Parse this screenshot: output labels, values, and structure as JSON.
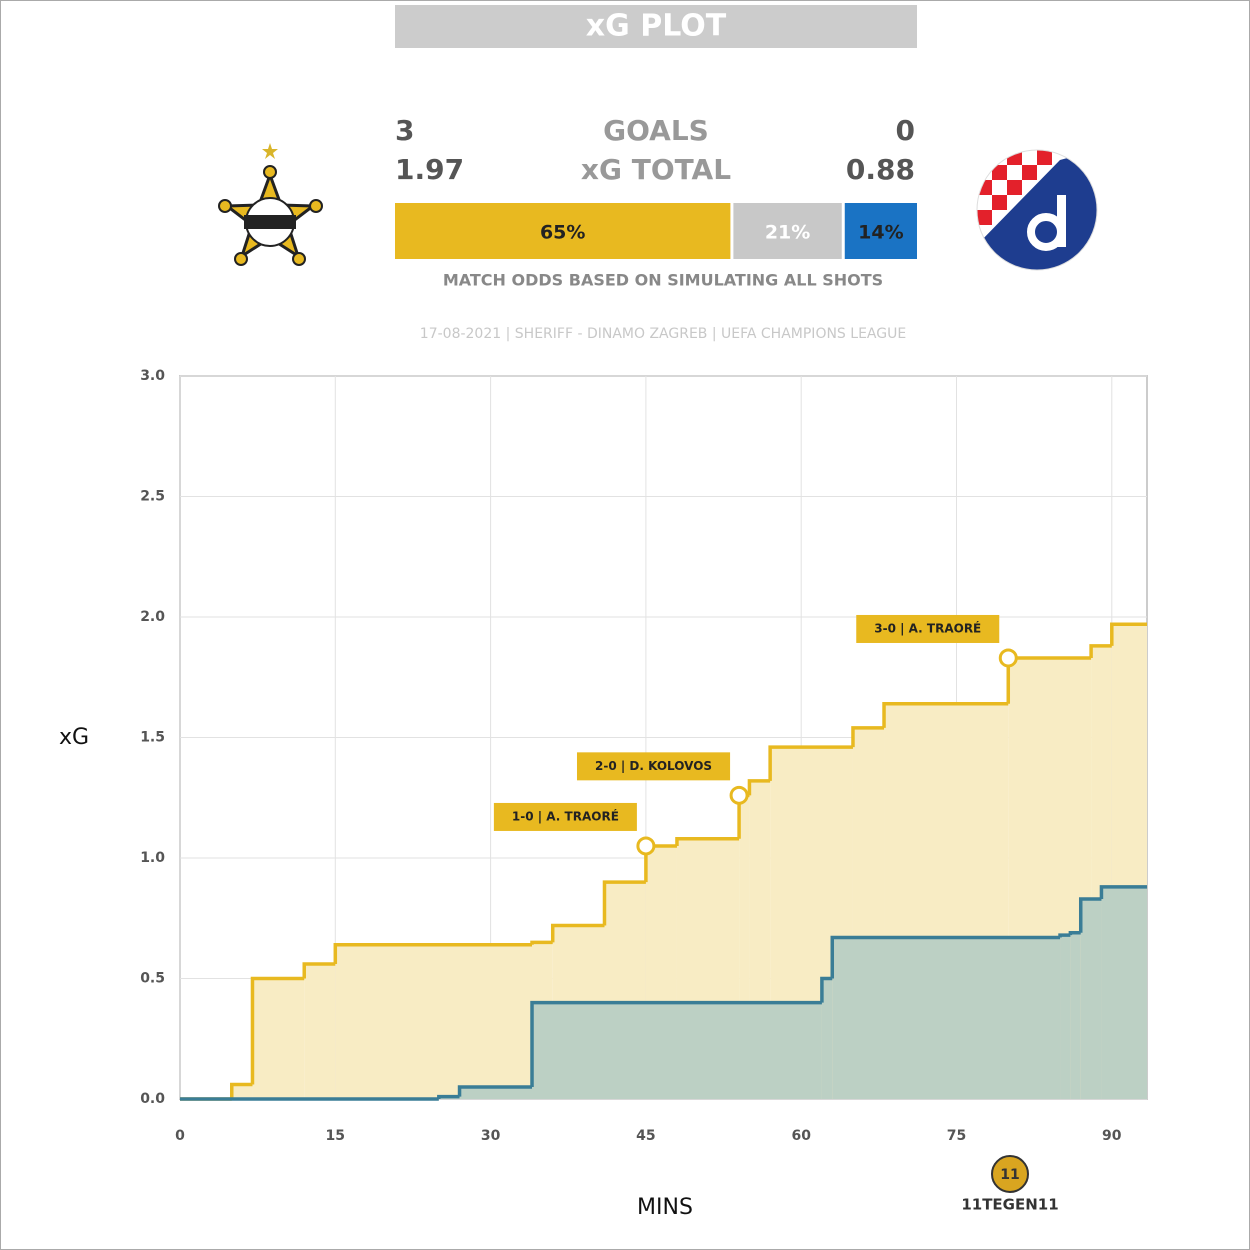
{
  "header": {
    "title": "xG PLOT",
    "goals_label": "GOALS",
    "xg_label": "xG TOTAL",
    "home_goals": 3,
    "away_goals": 0,
    "home_xg": 1.97,
    "away_xg": 0.88,
    "odds": {
      "values": [
        65,
        21,
        14
      ],
      "value_labels": [
        "65%",
        "21%",
        "14%"
      ],
      "colors": [
        "#e8b920",
        "#c8c8c8",
        "#1a73c4"
      ]
    },
    "odds_caption": "MATCH ODDS BASED ON SIMULATING ALL SHOTS",
    "subtitle": "17-08-2021 | SHERIFF - DINAMO ZAGREB | UEFA CHAMPIONS LEAGUE"
  },
  "chart_data": {
    "type": "step",
    "x_label": "MINS",
    "y_label": "xG",
    "xlim": [
      0,
      93.4
    ],
    "xticks": [
      0,
      15,
      30,
      45,
      60,
      75,
      90
    ],
    "ylim": [
      0,
      3
    ],
    "yticks": [
      {
        "value": 0,
        "label": "0.0"
      },
      {
        "value": 0.5,
        "label": "0.5"
      },
      {
        "value": 1,
        "label": "1.0"
      },
      {
        "value": 1.5,
        "label": "1.5"
      },
      {
        "value": 2,
        "label": "2.0"
      },
      {
        "value": 2.5,
        "label": "2.5"
      },
      {
        "value": 3,
        "label": "3.0"
      }
    ],
    "grid": true,
    "series": [
      {
        "color": "#e8b920",
        "fill": "#f8ecc4",
        "x": [
          0,
          5,
          7,
          12,
          15,
          34,
          36,
          41,
          45,
          48,
          54,
          55,
          57,
          65,
          68,
          80,
          88,
          90
        ],
        "values": [
          0,
          0.06,
          0.5,
          0.56,
          0.64,
          0.65,
          0.72,
          0.9,
          1.05,
          1.08,
          1.26,
          1.32,
          1.46,
          1.54,
          1.64,
          1.83,
          1.88,
          1.97
        ]
      },
      {
        "color": "#3a7d96",
        "fill": "#bcd0c4",
        "x": [
          0,
          25,
          27,
          34,
          62,
          63,
          85,
          86,
          87,
          89
        ],
        "values": [
          0,
          0.01,
          0.05,
          0.4,
          0.5,
          0.67,
          0.68,
          0.69,
          0.83,
          0.88
        ]
      }
    ],
    "annotations": [
      {
        "text": "1-0 | A. TRAORÉ",
        "x": 45,
        "y": 1.05
      },
      {
        "text": "2-0 | D. KOLOVOS",
        "x": 54,
        "y": 1.26
      },
      {
        "text": "3-0 | A. TRAORÉ",
        "x": 80,
        "y": 1.83
      }
    ]
  },
  "brand": "11TEGEN11"
}
